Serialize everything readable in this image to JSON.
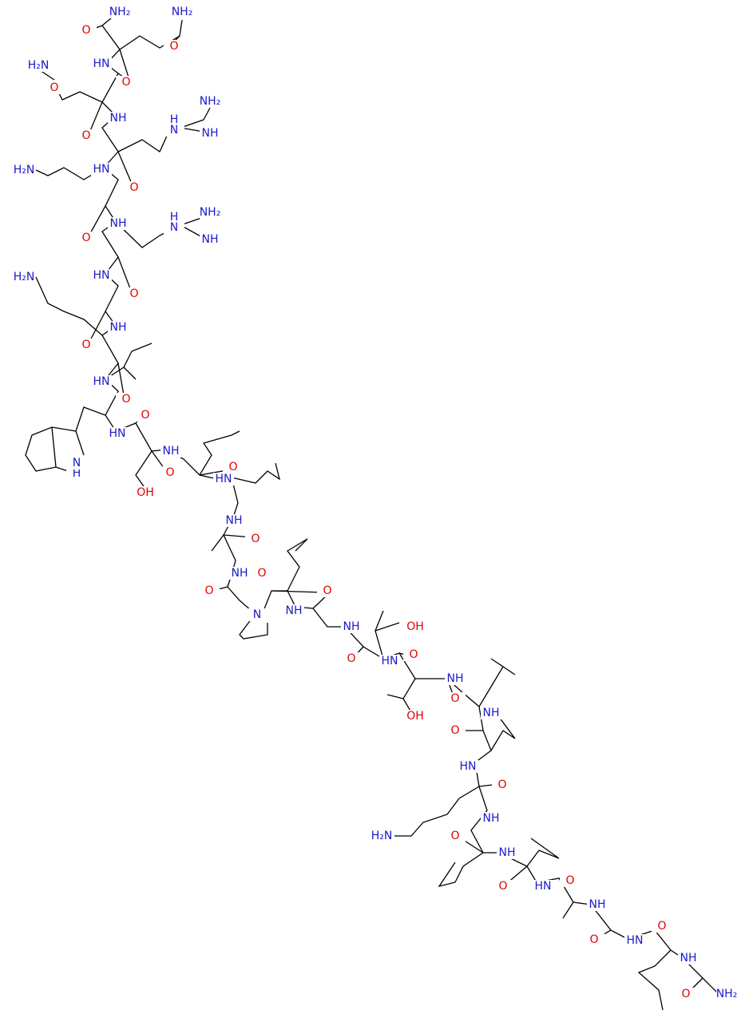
{
  "labels": [
    "NH₂",
    "NH₂",
    "O",
    "O",
    "H₂N",
    "HN",
    "O",
    "O",
    "NH₂",
    "NH",
    "H",
    "N",
    "NH",
    "O",
    "H₂N",
    "HN",
    "O",
    "NH₂",
    "NH",
    "H",
    "N",
    "NH",
    "O",
    "HN",
    "H₂N",
    "O",
    "NH",
    "O",
    "HN",
    "O",
    "O",
    "HN",
    "NH",
    "O",
    "H",
    "N",
    "OH",
    "HN",
    "O",
    "NH",
    "O",
    "NH",
    "O",
    "O",
    "N",
    "O",
    "NH",
    "NH",
    "OH",
    "O",
    "HN",
    "O",
    "NH",
    "OH",
    "O",
    "NH",
    "O",
    "HN",
    "O",
    "NH",
    "H₂N",
    "O",
    "NH",
    "O",
    "HN",
    "O",
    "NH",
    "O",
    "HN",
    "O",
    "NH",
    "O",
    "NH₂"
  ]
}
